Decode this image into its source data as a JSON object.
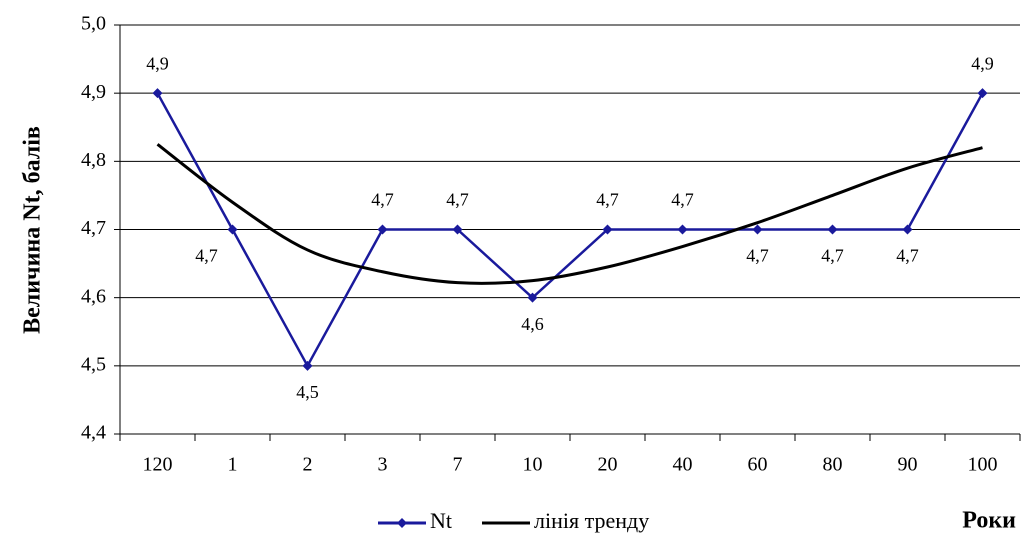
{
  "chart_data": {
    "type": "line",
    "y_label": "Величина Nt, балів",
    "x_label": "Роки",
    "categories": [
      "120",
      "1",
      "2",
      "3",
      "7",
      "10",
      "20",
      "40",
      "60",
      "80",
      "90",
      "100"
    ],
    "series": [
      {
        "name": "Nt",
        "color": "#1a1a9c",
        "values": [
          4.9,
          4.7,
          4.5,
          4.7,
          4.7,
          4.6,
          4.7,
          4.7,
          4.7,
          4.7,
          4.7,
          4.9
        ],
        "value_labels": [
          "4,9",
          "4,7",
          "4,5",
          "4,7",
          "4,7",
          "4,6",
          "4,7",
          "4,7",
          "4,7",
          "4,7",
          "4,7",
          "4,9"
        ]
      },
      {
        "name": "лінія тренду",
        "color": "#000000",
        "values": [
          4.825,
          4.74,
          4.67,
          4.638,
          4.622,
          4.625,
          4.645,
          4.675,
          4.71,
          4.75,
          4.79,
          4.82
        ]
      }
    ],
    "ylim": [
      4.4,
      5.0
    ],
    "yticks": [
      {
        "value": 4.4,
        "label": "4,4"
      },
      {
        "value": 4.5,
        "label": "4,5"
      },
      {
        "value": 4.6,
        "label": "4,6"
      },
      {
        "value": 4.7,
        "label": "4,7"
      },
      {
        "value": 4.8,
        "label": "4,8"
      },
      {
        "value": 4.9,
        "label": "4,9"
      },
      {
        "value": 5.0,
        "label": "5,0"
      }
    ],
    "grid": true
  }
}
